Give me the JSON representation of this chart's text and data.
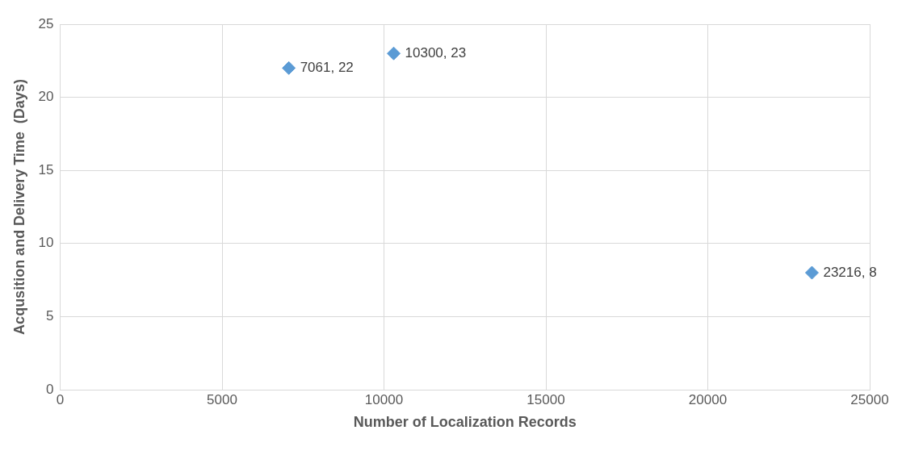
{
  "chart_data": {
    "type": "scatter",
    "xlabel": "Number of Localization Records",
    "ylabel": "Acqusition and Delivery Time  (Days)",
    "x": [
      7061,
      10300,
      23216
    ],
    "series": [
      {
        "color": "#5b9bd5",
        "values": [
          22,
          23,
          8
        ],
        "value_labels": [
          "7061, 22",
          "10300, 23",
          "23216, 8"
        ]
      }
    ],
    "xlim": [
      0,
      25000
    ],
    "xticks": [
      0,
      5000,
      10000,
      15000,
      20000,
      25000
    ],
    "ylim": [
      0,
      25
    ],
    "yticks": [
      0,
      5,
      10,
      15,
      20,
      25
    ],
    "grid": true,
    "legend": false,
    "marker": "diamond"
  }
}
